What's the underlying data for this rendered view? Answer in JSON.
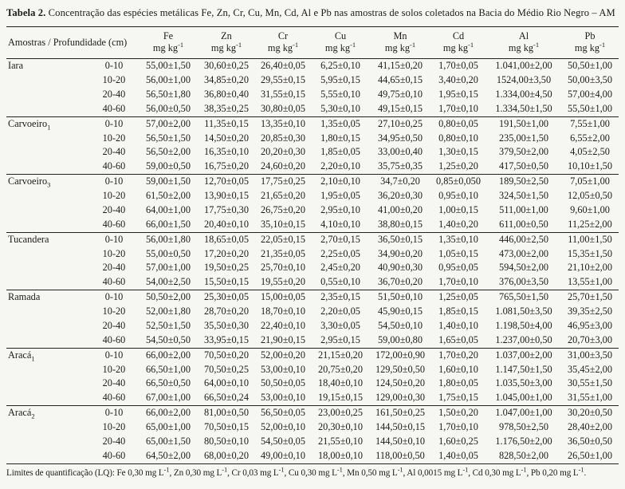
{
  "table": {
    "title_label": "Tabela 2.",
    "title_text": " Concentração das espécies metálicas Fe, Zn, Cr, Cu, Mn, Cd, Al e Pb  nas amostras de solos coletados na Bacia do Médio Rio Negro – AM",
    "col1_header": "Amostras / Profundidade (cm)",
    "unit_base": "mg kg",
    "unit_sup": "-1",
    "elements": [
      "Fe",
      "Zn",
      "Cr",
      "Cu",
      "Mn",
      "Cd",
      "Al",
      "Pb"
    ],
    "groups": [
      {
        "name": "Iara",
        "sub": "",
        "rows": [
          {
            "depth": "0-10",
            "values": [
              "55,00±1,50",
              "30,60±0,25",
              "26,40±0,05",
              "6,25±0,10",
              "41,15±0,20",
              "1,70±0,05",
              "1.041,00±2,00",
              "50,50±1,00"
            ]
          },
          {
            "depth": "10-20",
            "values": [
              "56,00±1,00",
              "34,85±0,20",
              "29,55±0,15",
              "5,95±0,15",
              "44,65±0,15",
              "3,40±0,20",
              "1524,00±3,50",
              "50,00±3,50"
            ]
          },
          {
            "depth": "20-40",
            "values": [
              "56,50±1,80",
              "36,80±0,40",
              "31,55±0,15",
              "5,55±0,10",
              "49,75±0,10",
              "1,95±0,15",
              "1.334,00±4,50",
              "57,00±4,00"
            ]
          },
          {
            "depth": "40-60",
            "values": [
              "56,00±0,50",
              "38,35±0,25",
              "30,80±0,05",
              "5,30±0,10",
              "49,15±0,15",
              "1,70±0,10",
              "1.334,50±1,50",
              "55,50±1,00"
            ]
          }
        ]
      },
      {
        "name": "Carvoeiro",
        "sub": "1",
        "rows": [
          {
            "depth": "0-10",
            "values": [
              "57,00±2,00",
              "11,35±0,15",
              "13,35±0,10",
              "1,35±0,05",
              "27,10±0,25",
              "0,80±0,05",
              "191,50±1,00",
              "7,55±1,00"
            ]
          },
          {
            "depth": "10-20",
            "values": [
              "56,50±1,50",
              "14,50±0,20",
              "20,85±0,30",
              "1,80±0,15",
              "34,95±0,50",
              "0,80±0,10",
              "235,00±1,50",
              "6,55±2,00"
            ]
          },
          {
            "depth": "20-40",
            "values": [
              "56,50±2,00",
              "16,35±0,10",
              "20,20±0,30",
              "1,85±0,05",
              "33,00±0,40",
              "1,30±0,15",
              "379,50±2,00",
              "4,05±2,50"
            ]
          },
          {
            "depth": "40-60",
            "values": [
              "59,00±0,50",
              "16,75±0,20",
              "24,60±0,20",
              "2,20±0,10",
              "35,75±0,35",
              "1,25±0,20",
              "417,50±0,50",
              "10,10±1,50"
            ]
          }
        ]
      },
      {
        "name": "Carvoeiro",
        "sub": "3",
        "rows": [
          {
            "depth": "0-10",
            "values": [
              "59,00±1,50",
              "12,70±0,05",
              "17,75±0,25",
              "2,10±0,10",
              "34,7±0,20",
              "0,85±0,050",
              "189,50±2,50",
              "7,05±1,00"
            ]
          },
          {
            "depth": "10-20",
            "values": [
              "61,50±2,00",
              "13,90±0,15",
              "21,65±0,20",
              "1,95±0,05",
              "36,20±0,30",
              "0,95±0,10",
              "324,50±1,50",
              "12,05±0,50"
            ]
          },
          {
            "depth": "20-40",
            "values": [
              "64,00±1,00",
              "17,75±0,30",
              "26,75±0,20",
              "2,95±0,10",
              "41,00±0,20",
              "1,00±0,15",
              "511,00±1,00",
              "9,60±1,00"
            ]
          },
          {
            "depth": "40-60",
            "values": [
              "66,00±1,50",
              "20,40±0,10",
              "35,10±0,15",
              "4,10±0,10",
              "38,80±0,15",
              "1,40±0,20",
              "611,00±0,50",
              "11,25±2,00"
            ]
          }
        ]
      },
      {
        "name": "Tucandera",
        "sub": "",
        "rows": [
          {
            "depth": "0-10",
            "values": [
              "56,00±1,80",
              "18,65±0,05",
              "22,05±0,15",
              "2,70±0,15",
              "36,50±0,15",
              "1,35±0,10",
              "446,00±2,50",
              "11,00±1,50"
            ]
          },
          {
            "depth": "10-20",
            "values": [
              "55,00±0,50",
              "17,20±0,20",
              "21,35±0,05",
              "2,25±0,05",
              "34,90±0,20",
              "1,05±0,15",
              "473,00±2,00",
              "15,35±1,50"
            ]
          },
          {
            "depth": "20-40",
            "values": [
              "57,00±1,00",
              "19,50±0,25",
              "25,70±0,10",
              "2,45±0,20",
              "40,90±0,30",
              "0,95±0,05",
              "594,50±2,00",
              "21,10±2,00"
            ]
          },
          {
            "depth": "40-60",
            "values": [
              "54,00±2,50",
              "15,50±0,15",
              "19,55±0,20",
              "0,55±0,10",
              "36,70±0,20",
              "1,70±0,10",
              "376,00±3,50",
              "13,55±1,00"
            ]
          }
        ]
      },
      {
        "name": "Ramada",
        "sub": "",
        "rows": [
          {
            "depth": "0-10",
            "values": [
              "50,50±2,00",
              "25,30±0,05",
              "15,00±0,05",
              "2,35±0,15",
              "51,50±0,10",
              "1,25±0,05",
              "765,50±1,50",
              "25,70±1,50"
            ]
          },
          {
            "depth": "10-20",
            "values": [
              "52,00±1,80",
              "28,70±0,20",
              "18,70±0,10",
              "2,20±0,05",
              "45,90±0,15",
              "1,85±0,15",
              "1.081,50±3,50",
              "39,35±2,50"
            ]
          },
          {
            "depth": "20-40",
            "values": [
              "52,50±1,50",
              "35,50±0,30",
              "22,40±0,10",
              "3,30±0,05",
              "54,50±0,10",
              "1,40±0,10",
              "1.198,50±4,00",
              "46,95±3,00"
            ]
          },
          {
            "depth": "40-60",
            "values": [
              "54,50±0,50",
              "33,95±0,15",
              "21,90±0,15",
              "2,95±0,15",
              "59,00±0,80",
              "1,65±0,05",
              "1.237,00±0,50",
              "20,70±3,00"
            ]
          }
        ]
      },
      {
        "name": "Aracá",
        "sub": "1",
        "rows": [
          {
            "depth": "0-10",
            "values": [
              "66,00±2,00",
              "70,50±0,20",
              "52,00±0,20",
              "21,15±0,20",
              "172,00±0,90",
              "1,70±0,20",
              "1.037,00±2,00",
              "31,00±3,50"
            ]
          },
          {
            "depth": "10-20",
            "values": [
              "66,50±1,00",
              "70,50±0,25",
              "53,00±0,10",
              "20,75±0,20",
              "129,50±0,50",
              "1,60±0,10",
              "1.147,50±1,50",
              "35,45±2,00"
            ]
          },
          {
            "depth": "20-40",
            "values": [
              "66,50±0,50",
              "64,00±0,10",
              "50,50±0,05",
              "18,40±0,10",
              "124,50±0,20",
              "1,80±0,05",
              "1.035,50±3,00",
              "30,55±1,50"
            ]
          },
          {
            "depth": "40-60",
            "values": [
              "67,00±1,00",
              "66,50±0,24",
              "53,00±0,10",
              "19,15±0,15",
              "129,00±0,30",
              "1,75±0,15",
              "1.045,00±1,00",
              "31,55±1,00"
            ]
          }
        ]
      },
      {
        "name": "Aracá",
        "sub": "2",
        "rows": [
          {
            "depth": "0-10",
            "values": [
              "66,00±2,00",
              "81,00±0,50",
              "56,50±0,05",
              "23,00±0,25",
              "161,50±0,25",
              "1,50±0,20",
              "1.047,00±1,00",
              "30,20±0,50"
            ]
          },
          {
            "depth": "10-20",
            "values": [
              "65,00±1,00",
              "70,50±0,15",
              "52,00±0,10",
              "20,30±0,10",
              "144,50±0,15",
              "1,70±0,10",
              "978,50±2,50",
              "28,40±2,00"
            ]
          },
          {
            "depth": "20-40",
            "values": [
              "65,00±1,50",
              "80,50±0,10",
              "54,50±0,05",
              "21,55±0,10",
              "144,50±0,10",
              "1,60±0,25",
              "1.176,50±2,00",
              "36,50±0,50"
            ]
          },
          {
            "depth": "40-60",
            "values": [
              "64,50±2,00",
              "68,00±0,20",
              "49,00±0,10",
              "18,00±0,10",
              "118,00±0,50",
              "1,40±0,05",
              "828,50±2,00",
              "26,50±1,00"
            ]
          }
        ]
      }
    ],
    "footnote_parts": [
      {
        "text": "Limites de quantificação (LQ): Fe 0,30 mg L",
        "sup": "-1"
      },
      {
        "text": ", Zn 0,30 mg L",
        "sup": "-1"
      },
      {
        "text": ", Cr 0,03 mg L",
        "sup": "-1"
      },
      {
        "text": ", Cu 0,30 mg L",
        "sup": "-1"
      },
      {
        "text": ", Mn 0,50 mg L",
        "sup": "-1"
      },
      {
        "text": ", Al 0,0015 mg L",
        "sup": "-1"
      },
      {
        "text": ", Cd 0,30 mg L",
        "sup": "-1"
      },
      {
        "text": ", Pb 0,20 mg L",
        "sup": "-1"
      },
      {
        "text": ".",
        "sup": ""
      }
    ]
  }
}
